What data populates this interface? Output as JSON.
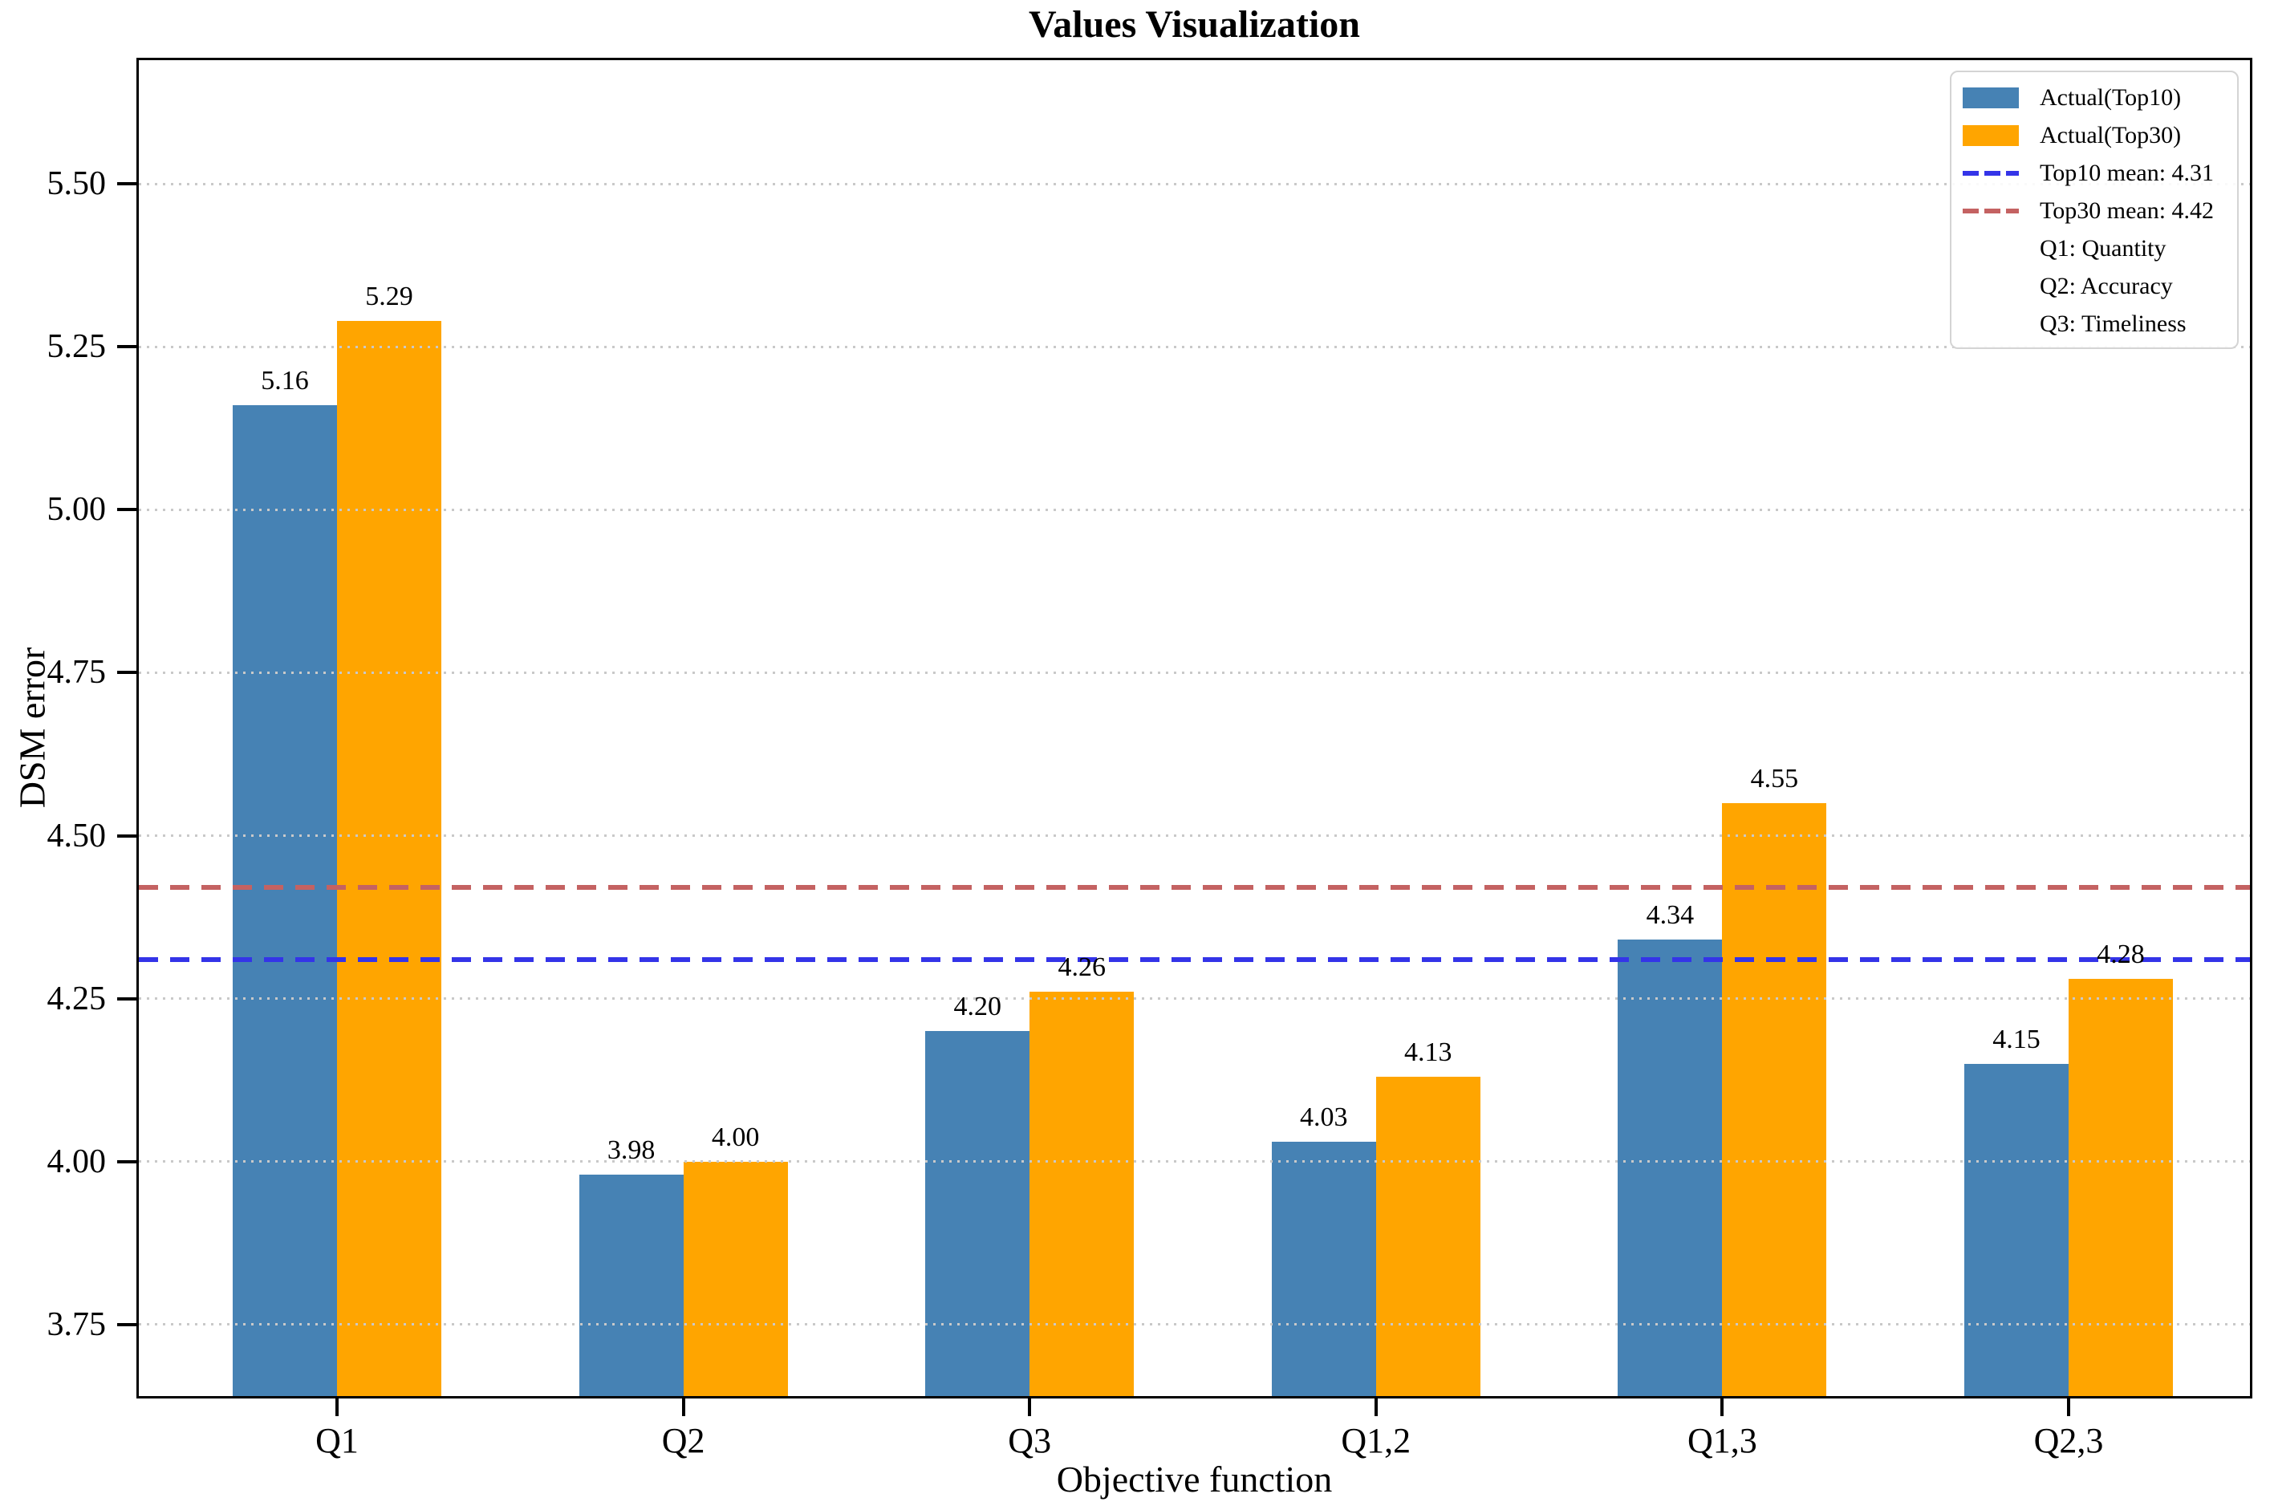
{
  "title": "Values Visualization",
  "axes": {
    "x_label": "Objective function",
    "y_label": "DSM error"
  },
  "legend_items": [
    "Actual(Top10)",
    "Actual(Top30)",
    "Top10 mean: 4.31",
    "Top30 mean: 4.42",
    "Q1: Quantity",
    "Q2: Accuracy",
    "Q3: Timeliness"
  ],
  "colors": {
    "bar_top10": "#4682B4",
    "bar_top30": "#FFA500",
    "mean_top10_line": "#3434e8",
    "mean_top30_line": "#c46262",
    "gridline": "#c9c9c9",
    "spine": "#000000"
  },
  "chart_data": {
    "type": "bar",
    "title": "Values Visualization",
    "xlabel": "Objective function",
    "ylabel": "DSM error",
    "categories": [
      "Q1",
      "Q2",
      "Q3",
      "Q1,2",
      "Q1,3",
      "Q2,3"
    ],
    "series": [
      {
        "name": "Actual(Top10)",
        "color": "#4682B4",
        "values": [
          5.16,
          3.98,
          4.2,
          4.03,
          4.34,
          4.15
        ]
      },
      {
        "name": "Actual(Top30)",
        "color": "#FFA500",
        "values": [
          5.29,
          4.0,
          4.26,
          4.13,
          4.55,
          4.28
        ]
      }
    ],
    "hlines": [
      {
        "label": "Top10 mean: 4.31",
        "value": 4.31,
        "color": "#3434e8",
        "style": "dashed"
      },
      {
        "label": "Top30 mean: 4.42",
        "value": 4.42,
        "color": "#c46262",
        "style": "dashed"
      }
    ],
    "legend_notes": [
      "Q1: Quantity",
      "Q2: Accuracy",
      "Q3: Timeliness"
    ],
    "yticks": [
      3.75,
      4.0,
      4.25,
      4.5,
      4.75,
      5.0,
      5.25,
      5.5
    ],
    "ylim": [
      3.64,
      5.69
    ],
    "grid": "dotted horizontal, drawn above bars",
    "legend_position": "upper right",
    "value_labels": true
  }
}
